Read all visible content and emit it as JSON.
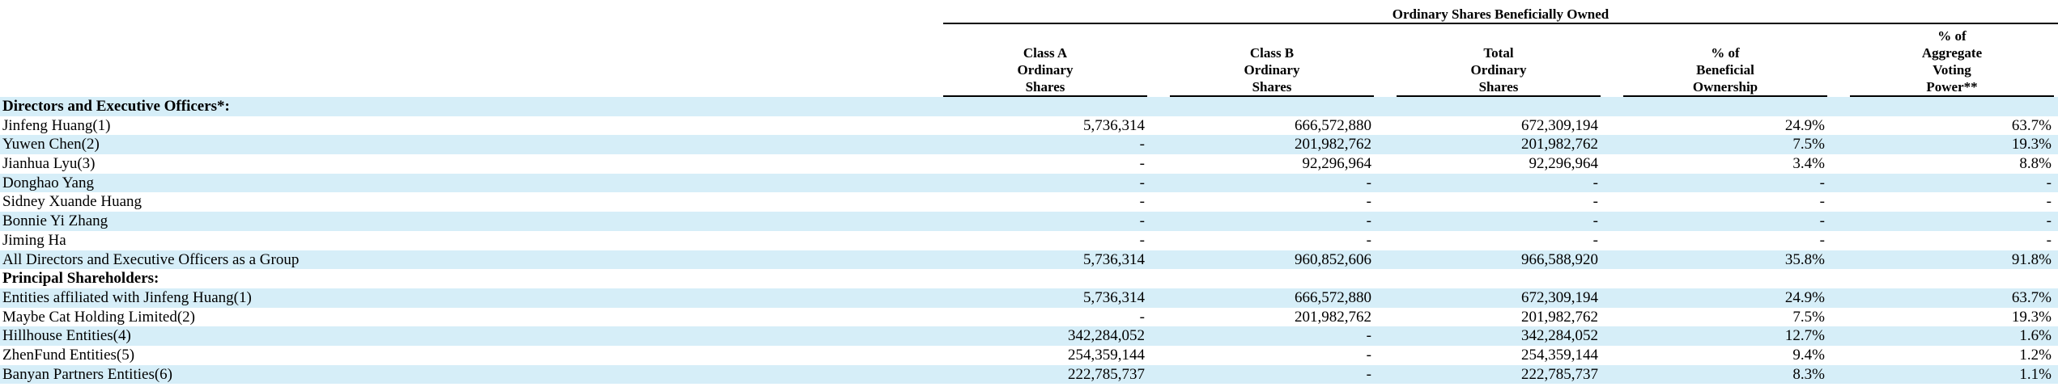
{
  "table": {
    "super_header": "Ordinary Shares Beneficially Owned",
    "columns": [
      {
        "lines": [
          "Class A",
          "Ordinary",
          "Shares"
        ]
      },
      {
        "lines": [
          "Class B",
          "Ordinary",
          "Shares"
        ]
      },
      {
        "lines": [
          "Total",
          "Ordinary",
          "Shares"
        ]
      },
      {
        "lines": [
          "% of",
          "Beneficial",
          "Ownership"
        ]
      },
      {
        "lines": [
          "% of",
          "Aggregate",
          "Voting",
          "Power**"
        ]
      }
    ],
    "rows": [
      {
        "type": "section",
        "label": "Directors and Executive Officers*:",
        "values": [
          "",
          "",
          "",
          "",
          ""
        ]
      },
      {
        "type": "data",
        "label": "Jinfeng Huang(1)",
        "values": [
          "5,736,314",
          "666,572,880",
          "672,309,194",
          "24.9%",
          "63.7%"
        ]
      },
      {
        "type": "data",
        "label": "Yuwen Chen(2)",
        "values": [
          "-",
          "201,982,762",
          "201,982,762",
          "7.5%",
          "19.3%"
        ]
      },
      {
        "type": "data",
        "label": "Jianhua Lyu(3)",
        "values": [
          "-",
          "92,296,964",
          "92,296,964",
          "3.4%",
          "8.8%"
        ]
      },
      {
        "type": "data",
        "label": "Donghao Yang",
        "values": [
          "-",
          "-",
          "-",
          "-",
          "-"
        ]
      },
      {
        "type": "data",
        "label": "Sidney Xuande Huang",
        "values": [
          "-",
          "-",
          "-",
          "-",
          "-"
        ]
      },
      {
        "type": "data",
        "label": "Bonnie Yi Zhang",
        "values": [
          "-",
          "-",
          "-",
          "-",
          "-"
        ]
      },
      {
        "type": "data",
        "label": "Jiming Ha",
        "values": [
          "-",
          "-",
          "-",
          "-",
          "-"
        ]
      },
      {
        "type": "data",
        "label": "All Directors and Executive Officers as a Group",
        "values": [
          "5,736,314",
          "960,852,606",
          "966,588,920",
          "35.8%",
          "91.8%"
        ]
      },
      {
        "type": "section",
        "label": "Principal Shareholders:",
        "values": [
          "",
          "",
          "",
          "",
          ""
        ]
      },
      {
        "type": "data",
        "label": "Entities affiliated with Jinfeng Huang(1)",
        "values": [
          "5,736,314",
          "666,572,880",
          "672,309,194",
          "24.9%",
          "63.7%"
        ]
      },
      {
        "type": "data",
        "label": "Maybe Cat Holding Limited(2)",
        "values": [
          "-",
          "201,982,762",
          "201,982,762",
          "7.5%",
          "19.3%"
        ]
      },
      {
        "type": "data",
        "label": "Hillhouse Entities(4)",
        "values": [
          "342,284,052",
          "-",
          "342,284,052",
          "12.7%",
          "1.6%"
        ]
      },
      {
        "type": "data",
        "label": "ZhenFund Entities(5)",
        "values": [
          "254,359,144",
          "-",
          "254,359,144",
          "9.4%",
          "1.2%"
        ]
      },
      {
        "type": "data",
        "label": "Banyan Partners Entities(6)",
        "values": [
          "222,785,737",
          "-",
          "222,785,737",
          "8.3%",
          "1.1%"
        ]
      }
    ]
  }
}
